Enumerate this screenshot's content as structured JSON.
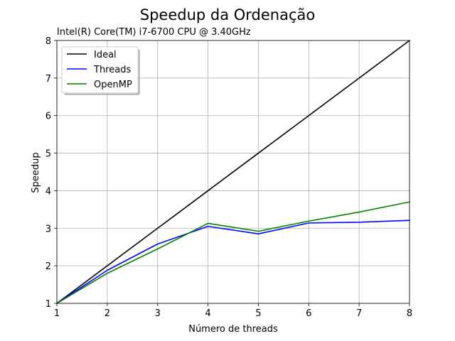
{
  "chart_data": {
    "type": "line",
    "title": "Speedup da Ordenação",
    "subtitle": "Intel(R) Core(TM) i7-6700 CPU @ 3.40GHz",
    "xlabel": "Número de threads",
    "ylabel": "Speedup",
    "x": [
      1,
      2,
      3,
      4,
      5,
      6,
      7,
      8
    ],
    "xlim": [
      1,
      8
    ],
    "ylim": [
      1,
      8
    ],
    "xticks": [
      "1",
      "2",
      "3",
      "4",
      "5",
      "6",
      "7",
      "8"
    ],
    "yticks": [
      "1",
      "2",
      "3",
      "4",
      "5",
      "6",
      "7",
      "8"
    ],
    "grid": true,
    "legend_position": "top-left",
    "series": [
      {
        "name": "Ideal",
        "color": "#000000",
        "values": [
          1,
          2,
          3,
          4,
          5,
          6,
          7,
          8
        ]
      },
      {
        "name": "Threads",
        "color": "#0000ff",
        "values": [
          1.0,
          1.88,
          2.58,
          3.05,
          2.85,
          3.14,
          3.16,
          3.21
        ]
      },
      {
        "name": "OpenMP",
        "color": "#008000",
        "values": [
          1.0,
          1.8,
          2.45,
          3.13,
          2.92,
          3.19,
          3.43,
          3.7
        ]
      }
    ]
  }
}
